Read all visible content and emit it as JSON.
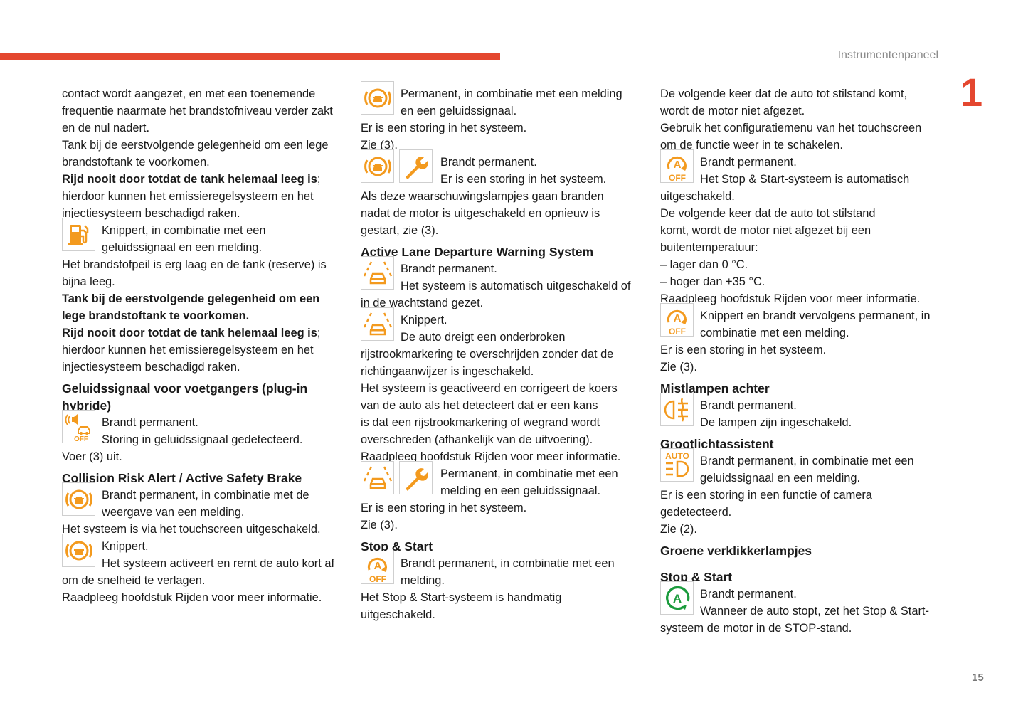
{
  "header": {
    "section": "Instrumentenpaneel",
    "chapter": "1",
    "page_number": "15"
  },
  "colors": {
    "accent": "#e4472f",
    "warning_icon": "#f39a1e",
    "green_icon": "#1a9b3c"
  },
  "columns": [
    [
      {
        "type": "p",
        "lines": [
          {
            "t": "contact wordt aangezet, en met een toenemende"
          },
          {
            "t": "frequentie naarmate het brandstofniveau verder zakt"
          },
          {
            "t": "en de nul nadert."
          },
          {
            "t": "Tank bij de eerstvolgende gelegenheid om een lege"
          },
          {
            "t": "brandstoftank te voorkomen."
          },
          {
            "b": "Rijd nooit door totdat de tank helemaal leeg is",
            "t": ";"
          },
          {
            "t": "hierdoor kunnen het emissieregelsysteem en het"
          },
          {
            "t": "injectiesysteem beschadigd raken."
          }
        ]
      },
      {
        "type": "icon",
        "icons": [
          "fuel-icon"
        ],
        "lines": [
          {
            "t": "Knippert, in combinatie met een"
          },
          {
            "t": "geluidssignaal en een melding."
          }
        ]
      },
      {
        "type": "p",
        "lines": [
          {
            "t": "Het brandstofpeil is erg laag en de tank (reserve) is"
          },
          {
            "t": "bijna leeg."
          },
          {
            "b": "Tank bij de eerstvolgende gelegenheid om een"
          },
          {
            "b": "lege brandstoftank te voorkomen."
          },
          {
            "b": "Rijd nooit door totdat de tank helemaal leeg is",
            "t": ";"
          },
          {
            "t": "hierdoor kunnen het emissieregelsysteem en het"
          },
          {
            "t": "injectiesysteem beschadigd raken."
          }
        ]
      },
      {
        "type": "h",
        "lines": [
          {
            "t": "Geluidssignaal voor voetgangers (plug-in"
          },
          {
            "t": "hybride)"
          }
        ]
      },
      {
        "type": "icon",
        "icons": [
          "pedestrian-sound-off-icon"
        ],
        "lines": [
          {
            "t": "Brandt permanent."
          },
          {
            "t": "Storing in geluidssignaal gedetecteerd."
          }
        ]
      },
      {
        "type": "p",
        "lines": [
          {
            "t": "Voer (3) uit."
          }
        ]
      },
      {
        "type": "h",
        "lines": [
          {
            "t": "Collision Risk Alert / Active Safety Brake"
          }
        ]
      },
      {
        "type": "icon",
        "icons": [
          "collision-alert-icon"
        ],
        "lines": [
          {
            "t": "Brandt permanent, in combinatie met de"
          },
          {
            "t": "weergave van een melding."
          }
        ]
      },
      {
        "type": "p",
        "lines": [
          {
            "t": "Het systeem is via het touchscreen uitgeschakeld."
          }
        ]
      },
      {
        "type": "icon",
        "icons": [
          "collision-alert-icon"
        ],
        "lines": [
          {
            "t": "Knippert."
          },
          {
            "t": "Het systeem activeert en remt de auto kort af"
          }
        ]
      },
      {
        "type": "p",
        "lines": [
          {
            "t": "om de snelheid te verlagen."
          },
          {
            "t": "Raadpleeg hoofdstuk Rijden voor meer informatie."
          }
        ]
      }
    ],
    [
      {
        "type": "icon",
        "icons": [
          "collision-alert-icon"
        ],
        "lines": [
          {
            "t": "Permanent, in combinatie met een melding"
          },
          {
            "t": "en een geluidssignaal."
          }
        ]
      },
      {
        "type": "p",
        "lines": [
          {
            "t": "Er is een storing in het systeem."
          },
          {
            "t": "Zie (3)."
          }
        ]
      },
      {
        "type": "icon",
        "icons": [
          "collision-alert-icon",
          "wrench-icon"
        ],
        "lines": [
          {
            "t": "Brandt permanent."
          },
          {
            "t": "Er is een storing in het systeem."
          }
        ]
      },
      {
        "type": "p",
        "lines": [
          {
            "t": "Als deze waarschuwingslampjes gaan branden"
          },
          {
            "t": "nadat de motor is uitgeschakeld en opnieuw is"
          },
          {
            "t": "gestart, zie (3)."
          }
        ]
      },
      {
        "type": "h",
        "lines": [
          {
            "t": "Active Lane Departure Warning System"
          }
        ]
      },
      {
        "type": "icon",
        "icons": [
          "lane-departure-icon"
        ],
        "lines": [
          {
            "t": "Brandt permanent."
          },
          {
            "t": "Het systeem is automatisch uitgeschakeld of"
          }
        ]
      },
      {
        "type": "p",
        "lines": [
          {
            "t": "in de wachtstand gezet."
          }
        ]
      },
      {
        "type": "icon",
        "icons": [
          "lane-departure-icon"
        ],
        "lines": [
          {
            "t": "Knippert."
          },
          {
            "t": "De auto dreigt een onderbroken"
          }
        ]
      },
      {
        "type": "p",
        "lines": [
          {
            "t": "rijstrookmarkering te overschrijden zonder dat de"
          },
          {
            "t": "richtingaanwijzer is ingeschakeld."
          },
          {
            "t": "Het systeem is geactiveerd en corrigeert de koers"
          },
          {
            "t": "van de auto als het detecteert dat er een kans"
          },
          {
            "t": "is dat een rijstrookmarkering of wegrand wordt"
          },
          {
            "t": "overschreden (afhankelijk van de uitvoering)."
          },
          {
            "t": "Raadpleeg hoofdstuk Rijden voor meer informatie."
          }
        ]
      },
      {
        "type": "icon",
        "icons": [
          "lane-departure-icon",
          "wrench-icon"
        ],
        "lines": [
          {
            "t": "Permanent, in combinatie met een"
          },
          {
            "t": "melding en een geluidssignaal."
          }
        ]
      },
      {
        "type": "p",
        "lines": [
          {
            "t": "Er is een storing in het systeem."
          },
          {
            "t": "Zie (3)."
          }
        ]
      },
      {
        "type": "h",
        "lines": [
          {
            "t": "Stop & Start"
          }
        ]
      },
      {
        "type": "icon",
        "icons": [
          "stop-start-off-icon"
        ],
        "lines": [
          {
            "t": "Brandt permanent, in combinatie met een"
          },
          {
            "t": "melding."
          }
        ]
      },
      {
        "type": "p",
        "lines": [
          {
            "t": "Het Stop & Start-systeem is handmatig"
          },
          {
            "t": "uitgeschakeld."
          }
        ]
      }
    ],
    [
      {
        "type": "p",
        "lines": [
          {
            "t": "De volgende keer dat de auto tot stilstand komt,"
          },
          {
            "t": "wordt de motor niet afgezet."
          },
          {
            "t": "Gebruik het configuratiemenu van het touchscreen"
          },
          {
            "t": "om de functie weer in te schakelen."
          }
        ]
      },
      {
        "type": "icon",
        "icons": [
          "stop-start-off-icon"
        ],
        "lines": [
          {
            "t": "Brandt permanent."
          },
          {
            "t": "Het Stop & Start-systeem is automatisch"
          }
        ]
      },
      {
        "type": "p",
        "lines": [
          {
            "t": "uitgeschakeld."
          },
          {
            "t": "De volgende keer dat de auto tot stilstand"
          },
          {
            "t": "komt, wordt de motor niet afgezet bij een"
          },
          {
            "t": "buitentemperatuur:"
          },
          {
            "t": "–  lager dan 0 °C."
          },
          {
            "t": "–  hoger dan +35 °C."
          },
          {
            "t": "Raadpleeg hoofdstuk Rijden voor meer informatie."
          }
        ]
      },
      {
        "type": "icon",
        "icons": [
          "stop-start-off-icon"
        ],
        "lines": [
          {
            "t": "Knippert en brandt vervolgens permanent, in"
          },
          {
            "t": "combinatie met een melding."
          }
        ]
      },
      {
        "type": "p",
        "lines": [
          {
            "t": "Er is een storing in het systeem."
          },
          {
            "t": "Zie (3)."
          }
        ]
      },
      {
        "type": "h",
        "lines": [
          {
            "t": "Mistlampen achter"
          }
        ]
      },
      {
        "type": "icon",
        "icons": [
          "rear-fog-lamp-icon"
        ],
        "lines": [
          {
            "t": "Brandt permanent."
          },
          {
            "t": "De lampen zijn ingeschakeld."
          }
        ]
      },
      {
        "type": "h",
        "lines": [
          {
            "t": "Grootlichtassistent"
          }
        ]
      },
      {
        "type": "icon",
        "icons": [
          "auto-high-beam-icon"
        ],
        "lines": [
          {
            "t": "Brandt permanent, in combinatie met een"
          },
          {
            "t": "geluidssignaal en een melding."
          }
        ]
      },
      {
        "type": "p",
        "lines": [
          {
            "t": "Er is een storing in een functie of camera"
          },
          {
            "t": "gedetecteerd."
          },
          {
            "t": "Zie (2)."
          }
        ]
      },
      {
        "type": "h",
        "lines": [
          {
            "t": "Groene verklikkerlampjes"
          }
        ]
      },
      {
        "type": "h",
        "big": true,
        "lines": [
          {
            "t": "Stop & Start"
          }
        ]
      },
      {
        "type": "icon",
        "icons": [
          "stop-start-active-icon"
        ],
        "lines": [
          {
            "t": "Brandt permanent."
          },
          {
            "t": "Wanneer de auto stopt, zet het Stop & Start-"
          }
        ]
      },
      {
        "type": "p",
        "lines": [
          {
            "t": "systeem de motor in de STOP-stand."
          }
        ]
      }
    ]
  ]
}
